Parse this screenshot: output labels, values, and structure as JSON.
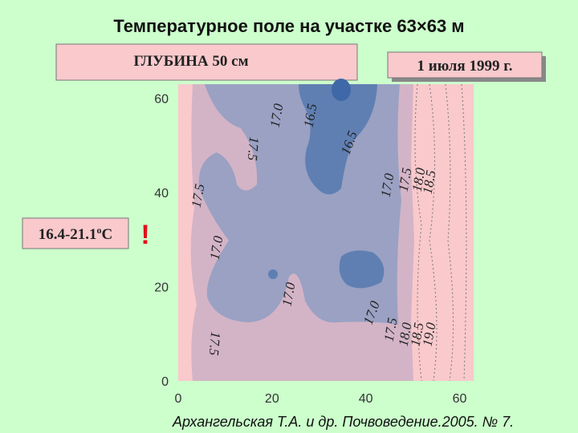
{
  "chart_data": {
    "type": "contour",
    "title": "Температурное поле на участке 63×63 м",
    "subtitle": "ГЛУБИНА 50 см",
    "date": "1 июля 1999 г.",
    "range_text": "16.4-21.1",
    "range_unit_sup": "о",
    "range_unit": "С",
    "alert": "!",
    "source": "Архангельская Т.А. и др. Почвоведение.2005. № 7.",
    "xlim": [
      0,
      63
    ],
    "ylim": [
      0,
      63
    ],
    "xticks": [
      0,
      20,
      40,
      60
    ],
    "yticks": [
      0,
      20,
      40,
      60
    ],
    "contour_labels": [
      {
        "value": 17,
        "label": "17.0"
      },
      {
        "value": 16.5,
        "label": "16.5"
      },
      {
        "value": 17.5,
        "label": "17.5"
      },
      {
        "value": 16.5,
        "label": "16.5"
      },
      {
        "value": 17.5,
        "label": "17.5"
      },
      {
        "value": 17,
        "label": "17.0"
      },
      {
        "value": 17.5,
        "label": "17.5"
      },
      {
        "value": 18,
        "label": "18.0"
      },
      {
        "value": 18.5,
        "label": "18.5"
      },
      {
        "value": 17,
        "label": "17.0"
      },
      {
        "value": 17,
        "label": "17.0"
      },
      {
        "value": 17,
        "label": "17.0"
      },
      {
        "value": 17.5,
        "label": "17.5"
      },
      {
        "value": 18,
        "label": "18.0"
      },
      {
        "value": 18.5,
        "label": "18.5"
      },
      {
        "value": 19,
        "label": "19.0"
      },
      {
        "value": 17.5,
        "label": "17.5"
      }
    ]
  }
}
